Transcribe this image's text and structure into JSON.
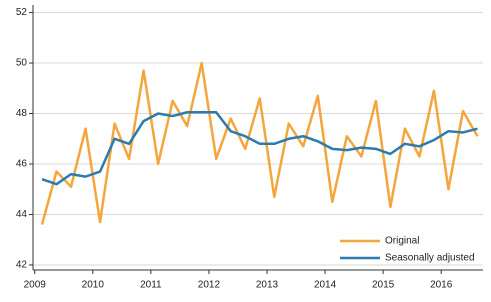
{
  "chart_data": {
    "type": "line",
    "x": [
      2009.125,
      2009.375,
      2009.625,
      2009.875,
      2010.125,
      2010.375,
      2010.625,
      2010.875,
      2011.125,
      2011.375,
      2011.625,
      2011.875,
      2012.125,
      2012.375,
      2012.625,
      2012.875,
      2013.125,
      2013.375,
      2013.625,
      2013.875,
      2014.125,
      2014.375,
      2014.625,
      2014.875,
      2015.125,
      2015.375,
      2015.625,
      2015.875,
      2016.125,
      2016.375,
      2016.625
    ],
    "series": [
      {
        "name": "Original",
        "color": "#f4a53c",
        "values": [
          43.6,
          45.7,
          45.1,
          47.4,
          43.7,
          47.6,
          46.2,
          49.7,
          46.0,
          48.5,
          47.5,
          50.0,
          46.2,
          47.8,
          46.6,
          48.6,
          44.7,
          47.6,
          46.7,
          48.7,
          44.5,
          47.1,
          46.3,
          48.5,
          44.3,
          47.4,
          46.3,
          48.9,
          45.0,
          48.1,
          47.1
        ]
      },
      {
        "name": "Seasonally adjusted",
        "color": "#2c7bb0",
        "values": [
          45.4,
          45.2,
          45.6,
          45.5,
          45.7,
          47.0,
          46.8,
          47.7,
          48.0,
          47.9,
          48.05,
          48.05,
          48.05,
          47.3,
          47.1,
          46.8,
          46.8,
          47.0,
          47.1,
          46.9,
          46.6,
          46.55,
          46.65,
          46.6,
          46.4,
          46.8,
          46.7,
          46.95,
          47.3,
          47.25,
          47.4
        ]
      }
    ],
    "xlim": [
      2008.97,
      2016.72
    ],
    "xticks": [
      2009,
      2010,
      2011,
      2012,
      2013,
      2014,
      2015,
      2016
    ],
    "ylim": [
      41.8,
      52.3
    ],
    "yticks": [
      42,
      44,
      46,
      48,
      50,
      52
    ],
    "grid": true,
    "legend": "lower right"
  }
}
